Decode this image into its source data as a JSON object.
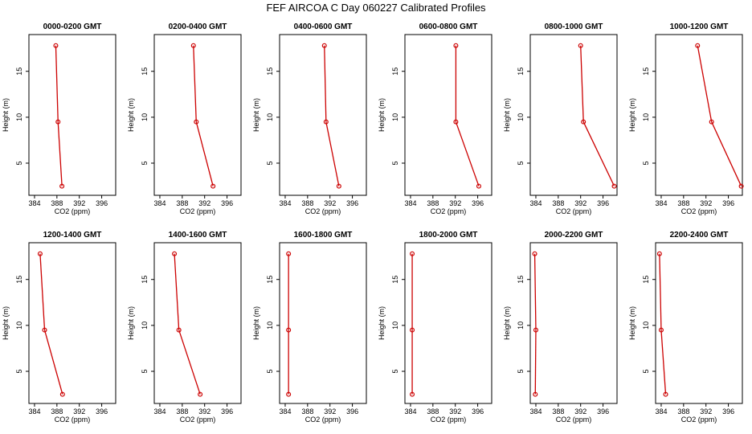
{
  "title": "FEF AIRCOA C  Day 060227  Calibrated Profiles",
  "colors": {
    "line": "#cc0000",
    "axis": "#000000",
    "background": "#ffffff"
  },
  "chart_data": [
    {
      "type": "line",
      "title": "0000-0200 GMT",
      "xlabel": "CO2 (ppm)",
      "ylabel": "Height (m)",
      "xlim": [
        383,
        398.5
      ],
      "ylim": [
        1.5,
        19
      ],
      "xticks": [
        384,
        388,
        392,
        396
      ],
      "yticks": [
        5,
        10,
        15
      ],
      "x": [
        387.8,
        388.2,
        388.9
      ],
      "y": [
        17.8,
        9.5,
        2.5
      ]
    },
    {
      "type": "line",
      "title": "0200-0400 GMT",
      "xlabel": "CO2 (ppm)",
      "ylabel": "Height (m)",
      "xlim": [
        383,
        398.5
      ],
      "ylim": [
        1.5,
        19
      ],
      "xticks": [
        384,
        388,
        392,
        396
      ],
      "yticks": [
        5,
        10,
        15
      ],
      "x": [
        390.0,
        390.5,
        393.5
      ],
      "y": [
        17.8,
        9.5,
        2.5
      ]
    },
    {
      "type": "line",
      "title": "0400-0600 GMT",
      "xlabel": "CO2 (ppm)",
      "ylabel": "Height (m)",
      "xlim": [
        383,
        398.5
      ],
      "ylim": [
        1.5,
        19
      ],
      "xticks": [
        384,
        388,
        392,
        396
      ],
      "yticks": [
        5,
        10,
        15
      ],
      "x": [
        391.0,
        391.3,
        393.6
      ],
      "y": [
        17.8,
        9.5,
        2.5
      ]
    },
    {
      "type": "line",
      "title": "0600-0800 GMT",
      "xlabel": "CO2 (ppm)",
      "ylabel": "Height (m)",
      "xlim": [
        383,
        398.5
      ],
      "ylim": [
        1.5,
        19
      ],
      "xticks": [
        384,
        388,
        392,
        396
      ],
      "yticks": [
        5,
        10,
        15
      ],
      "x": [
        392.1,
        392.1,
        396.2
      ],
      "y": [
        17.8,
        9.5,
        2.5
      ]
    },
    {
      "type": "line",
      "title": "0800-1000 GMT",
      "xlabel": "CO2 (ppm)",
      "ylabel": "Height (m)",
      "xlim": [
        383,
        398.5
      ],
      "ylim": [
        1.5,
        19
      ],
      "xticks": [
        384,
        388,
        392,
        396
      ],
      "yticks": [
        5,
        10,
        15
      ],
      "x": [
        392.0,
        392.5,
        398.0
      ],
      "y": [
        17.8,
        9.5,
        2.5
      ]
    },
    {
      "type": "line",
      "title": "1000-1200 GMT",
      "xlabel": "CO2 (ppm)",
      "ylabel": "Height (m)",
      "xlim": [
        383,
        398.5
      ],
      "ylim": [
        1.5,
        19
      ],
      "xticks": [
        384,
        388,
        392,
        396
      ],
      "yticks": [
        5,
        10,
        15
      ],
      "x": [
        390.5,
        393.0,
        398.3
      ],
      "y": [
        17.8,
        9.5,
        2.5
      ]
    },
    {
      "type": "line",
      "title": "1200-1400 GMT",
      "xlabel": "CO2 (ppm)",
      "ylabel": "Height (m)",
      "xlim": [
        383,
        398.5
      ],
      "ylim": [
        1.5,
        19
      ],
      "xticks": [
        384,
        388,
        392,
        396
      ],
      "yticks": [
        5,
        10,
        15
      ],
      "x": [
        385.0,
        385.8,
        389.0
      ],
      "y": [
        17.8,
        9.5,
        2.5
      ]
    },
    {
      "type": "line",
      "title": "1400-1600 GMT",
      "xlabel": "CO2 (ppm)",
      "ylabel": "Height (m)",
      "xlim": [
        383,
        398.5
      ],
      "ylim": [
        1.5,
        19
      ],
      "xticks": [
        384,
        388,
        392,
        396
      ],
      "yticks": [
        5,
        10,
        15
      ],
      "x": [
        386.6,
        387.4,
        391.2
      ],
      "y": [
        17.8,
        9.5,
        2.5
      ]
    },
    {
      "type": "line",
      "title": "1600-1800 GMT",
      "xlabel": "CO2 (ppm)",
      "ylabel": "Height (m)",
      "xlim": [
        383,
        398.5
      ],
      "ylim": [
        1.5,
        19
      ],
      "xticks": [
        384,
        388,
        392,
        396
      ],
      "yticks": [
        5,
        10,
        15
      ],
      "x": [
        384.6,
        384.6,
        384.6
      ],
      "y": [
        17.8,
        9.5,
        2.5
      ]
    },
    {
      "type": "line",
      "title": "1800-2000 GMT",
      "xlabel": "CO2 (ppm)",
      "ylabel": "Height (m)",
      "xlim": [
        383,
        398.5
      ],
      "ylim": [
        1.5,
        19
      ],
      "xticks": [
        384,
        388,
        392,
        396
      ],
      "yticks": [
        5,
        10,
        15
      ],
      "x": [
        384.3,
        384.3,
        384.3
      ],
      "y": [
        17.8,
        9.5,
        2.5
      ]
    },
    {
      "type": "line",
      "title": "2000-2200 GMT",
      "xlabel": "CO2 (ppm)",
      "ylabel": "Height (m)",
      "xlim": [
        383,
        398.5
      ],
      "ylim": [
        1.5,
        19
      ],
      "xticks": [
        384,
        388,
        392,
        396
      ],
      "yticks": [
        5,
        10,
        15
      ],
      "x": [
        383.8,
        384.0,
        383.9
      ],
      "y": [
        17.8,
        9.5,
        2.5
      ]
    },
    {
      "type": "line",
      "title": "2200-2400 GMT",
      "xlabel": "CO2 (ppm)",
      "ylabel": "Height (m)",
      "xlim": [
        383,
        398.5
      ],
      "ylim": [
        1.5,
        19
      ],
      "xticks": [
        384,
        388,
        392,
        396
      ],
      "yticks": [
        5,
        10,
        15
      ],
      "x": [
        383.7,
        384.0,
        384.8
      ],
      "y": [
        17.8,
        9.5,
        2.5
      ]
    }
  ]
}
